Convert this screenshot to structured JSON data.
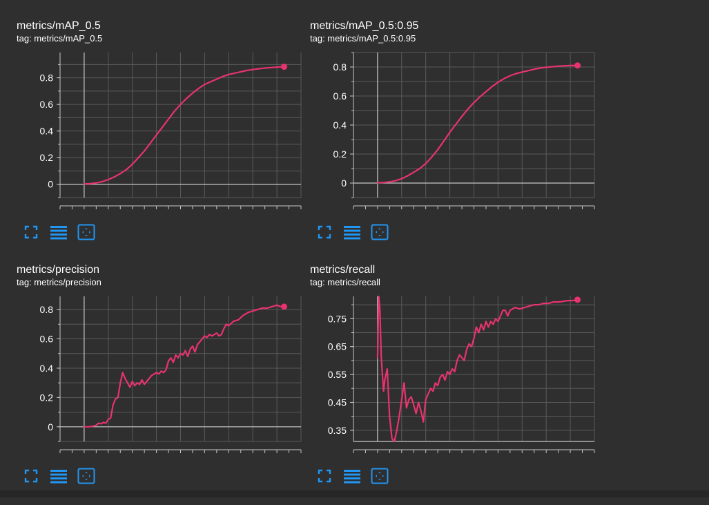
{
  "colors": {
    "background": "#2f2f2f",
    "axis": "#c8c8c8",
    "grid": "#5a5a5a",
    "series": "#e8336e",
    "tick_text": "#ffffff",
    "icon": "#2196f3"
  },
  "toolbar_icons": [
    "fullscreen-icon",
    "data-table-icon",
    "fit-domain-icon"
  ],
  "charts": [
    {
      "title": "metrics/mAP_0.5",
      "tag": "tag: metrics/mAP_0.5"
    },
    {
      "title": "metrics/mAP_0.5:0.95",
      "tag": "tag: metrics/mAP_0.5:0.95"
    },
    {
      "title": "metrics/precision",
      "tag": "tag: metrics/precision"
    },
    {
      "title": "metrics/recall",
      "tag": "tag: metrics/recall"
    }
  ],
  "chart_data": [
    {
      "type": "line",
      "title": "metrics/mAP_0.5",
      "xlim": [
        -20,
        180
      ],
      "ylim": [
        -0.1,
        0.99
      ],
      "xticks": [
        0,
        20,
        40,
        60,
        80,
        100,
        120,
        140,
        160
      ],
      "yticks": [
        0,
        0.2,
        0.4,
        0.6,
        0.8
      ],
      "ytick_labels": [
        "0",
        "0.2",
        "0.4",
        "0.6",
        "0.8"
      ],
      "grid": true,
      "series": [
        {
          "x": [
            0,
            5,
            10,
            15,
            20,
            25,
            30,
            35,
            40,
            45,
            50,
            55,
            60,
            65,
            70,
            75,
            80,
            85,
            90,
            95,
            100,
            105,
            110,
            115,
            120,
            125,
            130,
            135,
            140,
            145,
            150,
            155,
            160,
            166
          ],
          "y": [
            0.003,
            0.005,
            0.01,
            0.02,
            0.035,
            0.055,
            0.08,
            0.11,
            0.15,
            0.2,
            0.25,
            0.31,
            0.37,
            0.43,
            0.49,
            0.55,
            0.6,
            0.645,
            0.685,
            0.72,
            0.75,
            0.77,
            0.79,
            0.81,
            0.825,
            0.835,
            0.845,
            0.855,
            0.862,
            0.868,
            0.873,
            0.877,
            0.88,
            0.883
          ]
        }
      ],
      "end_marker": true
    },
    {
      "type": "line",
      "title": "metrics/mAP_0.5:0.95",
      "xlim": [
        -20,
        180
      ],
      "ylim": [
        -0.1,
        0.9
      ],
      "xticks": [
        0,
        20,
        40,
        60,
        80,
        100,
        120,
        140,
        160
      ],
      "yticks": [
        0,
        0.2,
        0.4,
        0.6,
        0.8
      ],
      "ytick_labels": [
        "0",
        "0.2",
        "0.4",
        "0.6",
        "0.8"
      ],
      "grid": true,
      "series": [
        {
          "x": [
            0,
            5,
            10,
            15,
            20,
            25,
            30,
            35,
            40,
            45,
            50,
            55,
            60,
            65,
            70,
            75,
            80,
            85,
            90,
            95,
            100,
            105,
            110,
            115,
            120,
            125,
            130,
            135,
            140,
            145,
            150,
            155,
            160,
            166
          ],
          "y": [
            0.002,
            0.004,
            0.008,
            0.016,
            0.03,
            0.05,
            0.075,
            0.1,
            0.135,
            0.18,
            0.23,
            0.29,
            0.35,
            0.405,
            0.46,
            0.51,
            0.555,
            0.595,
            0.63,
            0.665,
            0.695,
            0.72,
            0.74,
            0.755,
            0.765,
            0.775,
            0.785,
            0.793,
            0.798,
            0.802,
            0.806,
            0.808,
            0.81,
            0.811
          ]
        }
      ],
      "end_marker": true
    },
    {
      "type": "line",
      "title": "metrics/precision",
      "xlim": [
        -20,
        180
      ],
      "ylim": [
        -0.1,
        0.89
      ],
      "xticks": [
        0,
        20,
        40,
        60,
        80,
        100,
        120,
        140,
        160
      ],
      "yticks": [
        0,
        0.2,
        0.4,
        0.6,
        0.8
      ],
      "ytick_labels": [
        "0",
        "0.2",
        "0.4",
        "0.6",
        "0.8"
      ],
      "grid": true,
      "series": [
        {
          "x": [
            0,
            4,
            8,
            10,
            12,
            14,
            16,
            18,
            20,
            22,
            24,
            26,
            28,
            30,
            32,
            34,
            36,
            38,
            40,
            42,
            44,
            46,
            48,
            50,
            52,
            54,
            56,
            58,
            60,
            62,
            64,
            66,
            68,
            70,
            72,
            74,
            76,
            78,
            80,
            82,
            84,
            86,
            88,
            90,
            92,
            94,
            96,
            98,
            100,
            102,
            104,
            106,
            108,
            110,
            112,
            114,
            116,
            118,
            120,
            124,
            128,
            132,
            136,
            140,
            144,
            148,
            152,
            156,
            160,
            163,
            166
          ],
          "y": [
            0.0,
            0.0,
            0.005,
            0.01,
            0.025,
            0.02,
            0.03,
            0.025,
            0.05,
            0.06,
            0.15,
            0.19,
            0.2,
            0.3,
            0.37,
            0.33,
            0.3,
            0.27,
            0.31,
            0.28,
            0.3,
            0.29,
            0.32,
            0.29,
            0.31,
            0.33,
            0.35,
            0.36,
            0.37,
            0.36,
            0.38,
            0.37,
            0.39,
            0.45,
            0.47,
            0.44,
            0.49,
            0.47,
            0.5,
            0.49,
            0.52,
            0.48,
            0.53,
            0.55,
            0.51,
            0.56,
            0.58,
            0.6,
            0.62,
            0.61,
            0.63,
            0.62,
            0.63,
            0.64,
            0.62,
            0.63,
            0.67,
            0.7,
            0.69,
            0.72,
            0.73,
            0.76,
            0.78,
            0.79,
            0.8,
            0.81,
            0.81,
            0.82,
            0.83,
            0.82,
            0.82
          ]
        }
      ],
      "end_marker": true
    },
    {
      "type": "line",
      "title": "metrics/recall",
      "xlim": [
        -20,
        180
      ],
      "ylim": [
        0.31,
        0.83
      ],
      "xticks": [
        0,
        20,
        40,
        60,
        80,
        100,
        120,
        140,
        160
      ],
      "yticks": [
        0.35,
        0.45,
        0.55,
        0.65,
        0.75
      ],
      "ytick_labels": [
        "0.35",
        "0.45",
        "0.55",
        "0.65",
        "0.75"
      ],
      "grid": true,
      "series": [
        {
          "x": [
            0,
            1,
            2,
            3,
            4,
            5,
            6,
            8,
            10,
            12,
            14,
            16,
            18,
            20,
            22,
            24,
            26,
            28,
            30,
            32,
            34,
            36,
            38,
            40,
            42,
            44,
            46,
            48,
            50,
            52,
            54,
            56,
            58,
            60,
            62,
            64,
            66,
            68,
            70,
            72,
            74,
            76,
            78,
            80,
            82,
            84,
            86,
            88,
            90,
            92,
            94,
            96,
            98,
            100,
            102,
            104,
            106,
            108,
            110,
            114,
            118,
            122,
            126,
            130,
            134,
            138,
            142,
            146,
            150,
            154,
            158,
            162,
            166
          ],
          "y": [
            0.61,
            0.83,
            0.78,
            0.62,
            0.55,
            0.49,
            0.53,
            0.57,
            0.4,
            0.32,
            0.31,
            0.35,
            0.4,
            0.46,
            0.52,
            0.43,
            0.46,
            0.47,
            0.44,
            0.41,
            0.45,
            0.42,
            0.38,
            0.46,
            0.48,
            0.5,
            0.49,
            0.52,
            0.51,
            0.54,
            0.55,
            0.53,
            0.56,
            0.55,
            0.57,
            0.56,
            0.6,
            0.62,
            0.61,
            0.6,
            0.64,
            0.66,
            0.65,
            0.68,
            0.72,
            0.7,
            0.73,
            0.71,
            0.74,
            0.72,
            0.74,
            0.73,
            0.75,
            0.74,
            0.76,
            0.78,
            0.78,
            0.76,
            0.78,
            0.79,
            0.785,
            0.79,
            0.795,
            0.8,
            0.8,
            0.805,
            0.805,
            0.81,
            0.81,
            0.812,
            0.815,
            0.815,
            0.818
          ]
        }
      ],
      "end_marker": true
    }
  ]
}
